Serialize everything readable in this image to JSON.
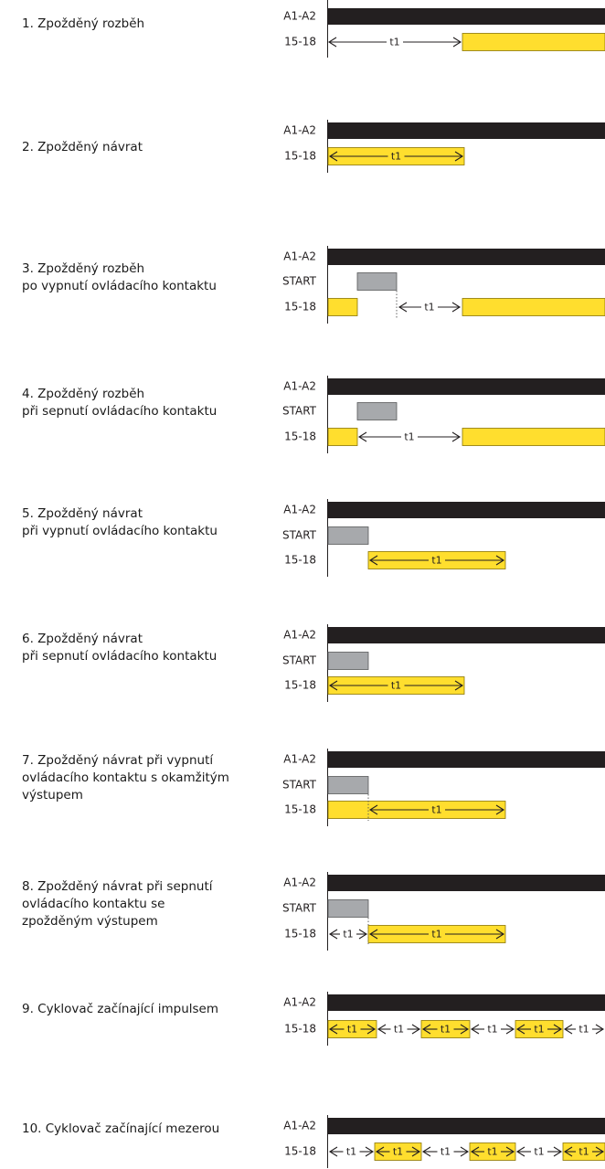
{
  "signals": {
    "supply": "A1-A2",
    "control": "START",
    "output": "15-18"
  },
  "time_label": "t1",
  "colors": {
    "supply_bar": "#231f20",
    "output_on": "#ffde2e",
    "output_border": "#8a7400",
    "start_on": "#a7a9ac",
    "start_border": "#58595b",
    "axis": "#231f20"
  },
  "modes": [
    {
      "title": "1. Zpožděný rozběh",
      "has_start": false
    },
    {
      "title": "2. Zpožděný návrat",
      "has_start": false
    },
    {
      "title": "3. Zpožděný rozběh\npo vypnutí ovládacího kontaktu",
      "has_start": true
    },
    {
      "title": "4. Zpožděný rozběh\npři sepnutí ovládacího kontaktu",
      "has_start": true
    },
    {
      "title": "5. Zpožděný návrat\npři vypnutí ovládacího kontaktu",
      "has_start": true
    },
    {
      "title": "6. Zpožděný návrat\npři sepnutí ovládacího kontaktu",
      "has_start": true
    },
    {
      "title": "7. Zpožděný návrat při vypnutí\novládacího kontaktu s okamžitým\nvýstupem",
      "has_start": true
    },
    {
      "title": "8. Zpožděný návrat při sepnutí\novládacího kontaktu se\nzpožděným výstupem",
      "has_start": true
    },
    {
      "title": "9. Cyklovač začínající impulsem",
      "has_start": false
    },
    {
      "title": "10. Cyklovač začínající mezerou",
      "has_start": false
    }
  ]
}
